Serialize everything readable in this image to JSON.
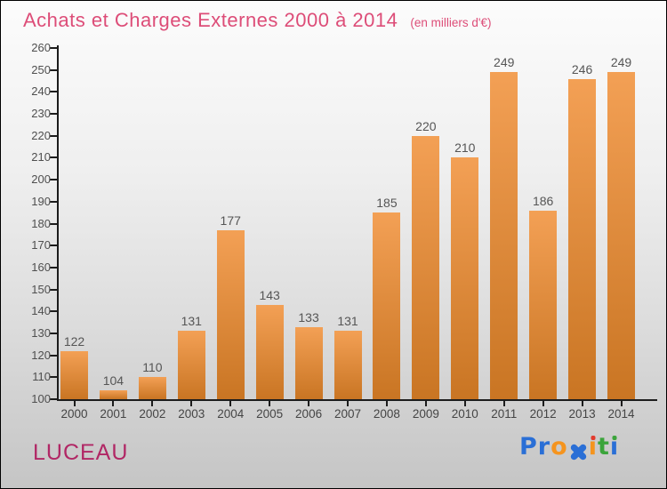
{
  "chart_data": {
    "type": "bar",
    "title": "Achats et Charges Externes 2000 à 2014",
    "subtitle": "(en milliers d'€)",
    "categories": [
      "2000",
      "2001",
      "2002",
      "2003",
      "2004",
      "2005",
      "2006",
      "2007",
      "2008",
      "2009",
      "2010",
      "2011",
      "2012",
      "2013",
      "2014"
    ],
    "values": [
      122,
      104,
      110,
      131,
      177,
      143,
      133,
      131,
      185,
      220,
      210,
      249,
      186,
      246,
      249
    ],
    "xlabel": "",
    "ylabel": "",
    "ylim": [
      100,
      260
    ],
    "ytick_step": 10,
    "grid": false,
    "legend": "none",
    "value_labels": true,
    "bar_color_top": "#f3a055",
    "bar_color_bottom": "#c97523"
  },
  "colors": {
    "title_pink": "#dd4d78",
    "company_crimson": "#b12765",
    "axis": "#1c1c1c",
    "tick_label": "#4f4f4f",
    "value_label": "#555555",
    "background_top": "#fcfcfc",
    "background_bottom": "#c5c5c5"
  },
  "footer": {
    "company": "LUCEAU",
    "logo": {
      "text": "Proxiti",
      "letters": [
        {
          "ch": "P",
          "color": "#2a6fd6"
        },
        {
          "ch": "r",
          "color": "#2a6fd6"
        },
        {
          "ch": "o",
          "color": "#f5941e"
        },
        {
          "type": "x",
          "color": "#2a6fd6"
        },
        {
          "type": "i",
          "stem": "#f5941e",
          "dot": "#e23b2e"
        },
        {
          "ch": "t",
          "color": "#3ba43b"
        },
        {
          "type": "i",
          "stem": "#2a6fd6",
          "dot": "#3ba43b"
        }
      ]
    }
  }
}
